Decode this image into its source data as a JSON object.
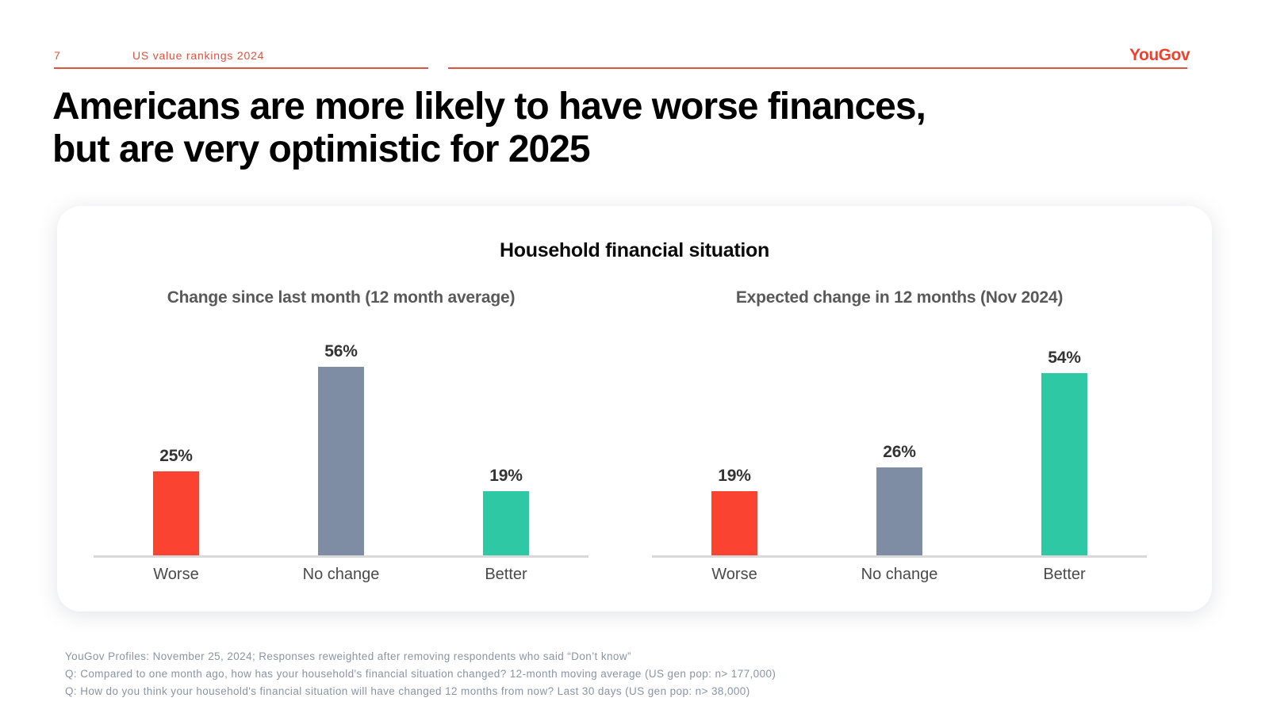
{
  "header": {
    "page_number": "7",
    "breadcrumb": "US value rankings 2024",
    "logo": "YouGov"
  },
  "title": {
    "line1": "Americans are more likely to have worse finances,",
    "line2": "but are very optimistic for 2025"
  },
  "card": {
    "title": "Household financial situation"
  },
  "chart_data": [
    {
      "type": "bar",
      "title": "Change since last month (12 month average)",
      "categories": [
        "Worse",
        "No change",
        "Better"
      ],
      "values": [
        25,
        56,
        19
      ],
      "value_labels": [
        "25%",
        "56%",
        "19%"
      ],
      "colors": [
        "#FB4332",
        "#7E8CA4",
        "#2EC8A4"
      ],
      "ylim": [
        0,
        60
      ],
      "grid": false,
      "legend": "none",
      "value_label_position": "above-bar"
    },
    {
      "type": "bar",
      "title": "Expected change in 12 months (Nov 2024)",
      "categories": [
        "Worse",
        "No change",
        "Better"
      ],
      "values": [
        19,
        26,
        54
      ],
      "value_labels": [
        "19%",
        "26%",
        "54%"
      ],
      "colors": [
        "#FB4332",
        "#7E8CA4",
        "#2EC8A4"
      ],
      "ylim": [
        0,
        60
      ],
      "grid": false,
      "legend": "none",
      "value_label_position": "above-bar"
    }
  ],
  "footnotes": [
    "YouGov Profiles: November 25, 2024; Responses reweighted after removing respondents who said “Don’t know”",
    "Q: Compared to one month ago, how has your household's financial situation changed? 12-month moving average (US gen pop: n> 177,000)",
    "Q: How do you think your household's financial situation will have changed 12 months from now? Last 30 days (US gen pop: n> 38,000)"
  ],
  "colors": {
    "accent_red": "#EA4C39",
    "bar_worse": "#FB4332",
    "bar_no_change": "#7E8CA4",
    "bar_better": "#2EC8A4",
    "axis_line": "#D9D9D9",
    "footnote_text": "#8A94A4"
  }
}
